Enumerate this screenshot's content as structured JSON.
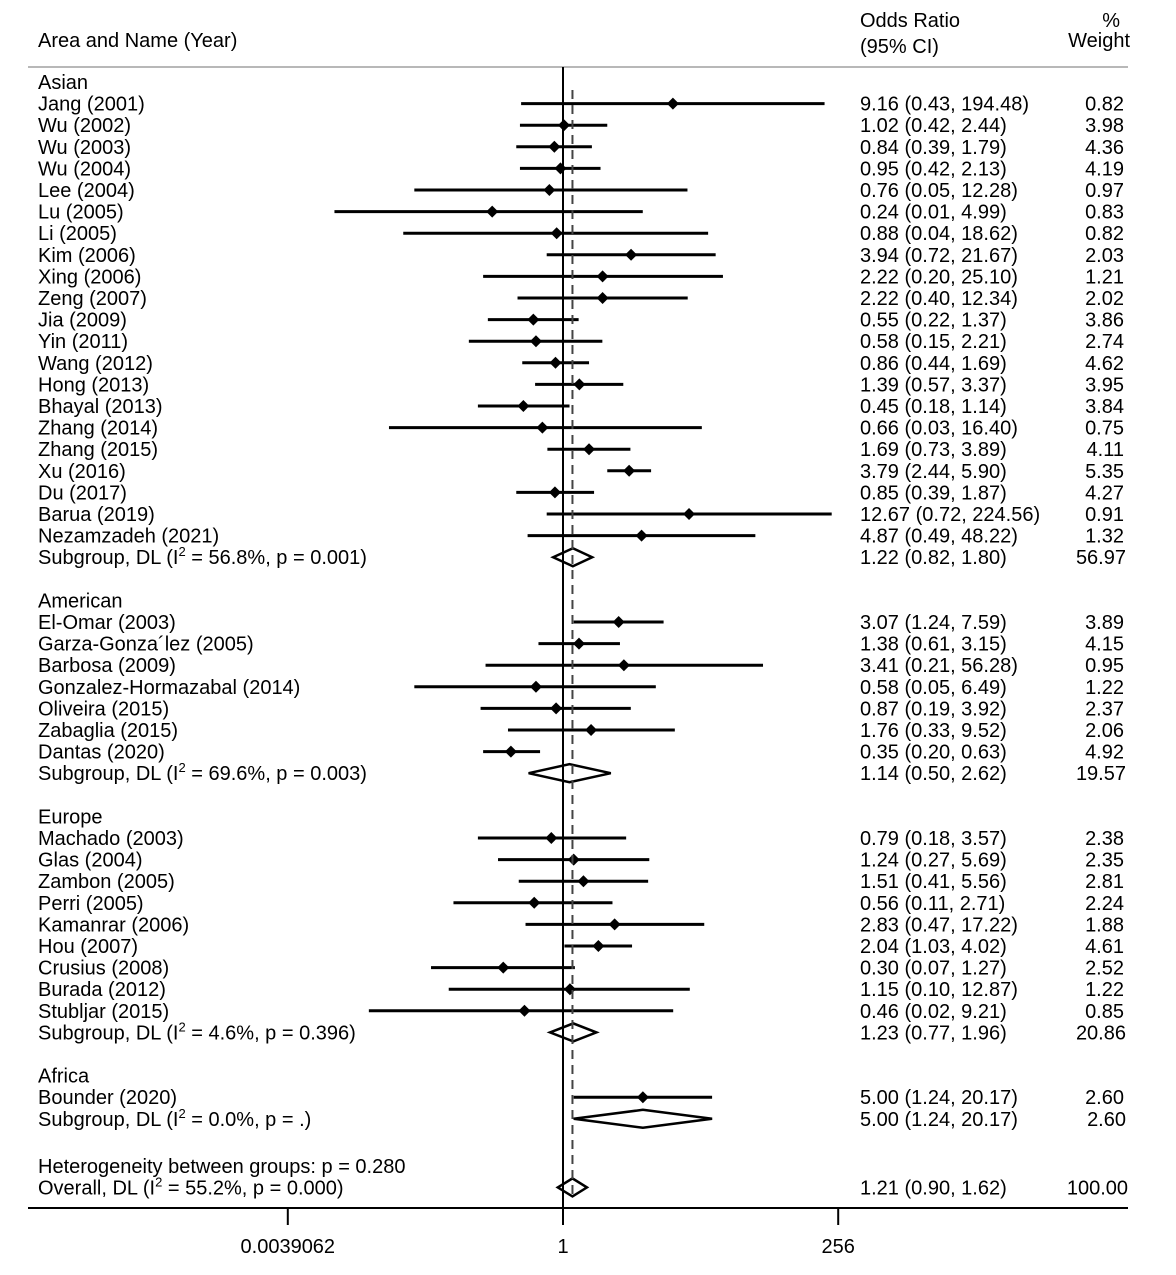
{
  "header": {
    "study_col": "Area and Name (Year)",
    "or_col_line1": "Odds Ratio",
    "or_col_line2": "(95% CI)",
    "weight_col_line1": "%",
    "weight_col_line2": "Weight"
  },
  "chart_data": {
    "type": "forest",
    "measure": "Odds Ratio",
    "x_scale": "log2",
    "xlim": [
      0.0039062,
      256
    ],
    "x_ticks": [
      0.0039062,
      1,
      256
    ],
    "x_tick_labels": [
      "0.0039062",
      "1",
      "256"
    ],
    "null_line": 1,
    "overall_line": 1.21,
    "groups": [
      {
        "name": "Asian",
        "studies": [
          {
            "label": "Jang (2001)",
            "or": 9.16,
            "lo": 0.43,
            "hi": 194.48,
            "ci_text": "9.16 (0.43, 194.48)",
            "weight": "0.82"
          },
          {
            "label": "Wu (2002)",
            "or": 1.02,
            "lo": 0.42,
            "hi": 2.44,
            "ci_text": "1.02 (0.42, 2.44)",
            "weight": "3.98"
          },
          {
            "label": "Wu (2003)",
            "or": 0.84,
            "lo": 0.39,
            "hi": 1.79,
            "ci_text": "0.84 (0.39, 1.79)",
            "weight": "4.36"
          },
          {
            "label": "Wu (2004)",
            "or": 0.95,
            "lo": 0.42,
            "hi": 2.13,
            "ci_text": "0.95 (0.42, 2.13)",
            "weight": "4.19"
          },
          {
            "label": "Lee (2004)",
            "or": 0.76,
            "lo": 0.05,
            "hi": 12.28,
            "ci_text": "0.76 (0.05, 12.28)",
            "weight": "0.97"
          },
          {
            "label": "Lu (2005)",
            "or": 0.24,
            "lo": 0.01,
            "hi": 4.99,
            "ci_text": "0.24 (0.01, 4.99)",
            "weight": "0.83"
          },
          {
            "label": "Li (2005)",
            "or": 0.88,
            "lo": 0.04,
            "hi": 18.62,
            "ci_text": "0.88 (0.04, 18.62)",
            "weight": "0.82"
          },
          {
            "label": "Kim (2006)",
            "or": 3.94,
            "lo": 0.72,
            "hi": 21.67,
            "ci_text": "3.94 (0.72, 21.67)",
            "weight": "2.03"
          },
          {
            "label": "Xing (2006)",
            "or": 2.22,
            "lo": 0.2,
            "hi": 25.1,
            "ci_text": "2.22 (0.20, 25.10)",
            "weight": "1.21"
          },
          {
            "label": "Zeng (2007)",
            "or": 2.22,
            "lo": 0.4,
            "hi": 12.34,
            "ci_text": "2.22 (0.40, 12.34)",
            "weight": "2.02"
          },
          {
            "label": "Jia (2009)",
            "or": 0.55,
            "lo": 0.22,
            "hi": 1.37,
            "ci_text": "0.55 (0.22, 1.37)",
            "weight": "3.86"
          },
          {
            "label": "Yin (2011)",
            "or": 0.58,
            "lo": 0.15,
            "hi": 2.21,
            "ci_text": "0.58 (0.15, 2.21)",
            "weight": "2.74"
          },
          {
            "label": "Wang (2012)",
            "or": 0.86,
            "lo": 0.44,
            "hi": 1.69,
            "ci_text": "0.86 (0.44, 1.69)",
            "weight": "4.62"
          },
          {
            "label": "Hong (2013)",
            "or": 1.39,
            "lo": 0.57,
            "hi": 3.37,
            "ci_text": "1.39 (0.57, 3.37)",
            "weight": "3.95"
          },
          {
            "label": "Bhayal (2013)",
            "or": 0.45,
            "lo": 0.18,
            "hi": 1.14,
            "ci_text": "0.45 (0.18, 1.14)",
            "weight": "3.84"
          },
          {
            "label": "Zhang (2014)",
            "or": 0.66,
            "lo": 0.03,
            "hi": 16.4,
            "ci_text": "0.66 (0.03, 16.40)",
            "weight": "0.75"
          },
          {
            "label": "Zhang (2015)",
            "or": 1.69,
            "lo": 0.73,
            "hi": 3.89,
            "ci_text": "1.69 (0.73, 3.89)",
            "weight": "4.11"
          },
          {
            "label": "Xu (2016)",
            "or": 3.79,
            "lo": 2.44,
            "hi": 5.9,
            "ci_text": "3.79 (2.44, 5.90)",
            "weight": "5.35"
          },
          {
            "label": "Du (2017)",
            "or": 0.85,
            "lo": 0.39,
            "hi": 1.87,
            "ci_text": "0.85 (0.39, 1.87)",
            "weight": "4.27"
          },
          {
            "label": "Barua (2019)",
            "or": 12.67,
            "lo": 0.72,
            "hi": 224.56,
            "ci_text": "12.67 (0.72, 224.56)",
            "weight": "0.91"
          },
          {
            "label": "Nezamzadeh (2021)",
            "or": 4.87,
            "lo": 0.49,
            "hi": 48.22,
            "ci_text": "4.87 (0.49, 48.22)",
            "weight": "1.32"
          }
        ],
        "subgroup": {
          "label_pre": "Subgroup, DL (I",
          "label_post": " = 56.8%, p = 0.001)",
          "or": 1.22,
          "lo": 0.82,
          "hi": 1.8,
          "ci_text": "1.22 (0.82, 1.80)",
          "weight": "56.97"
        }
      },
      {
        "name": "American",
        "studies": [
          {
            "label": "El-Omar (2003)",
            "or": 3.07,
            "lo": 1.24,
            "hi": 7.59,
            "ci_text": "3.07 (1.24, 7.59)",
            "weight": "3.89"
          },
          {
            "label": "Garza-Gonza´lez (2005)",
            "or": 1.38,
            "lo": 0.61,
            "hi": 3.15,
            "ci_text": "1.38 (0.61, 3.15)",
            "weight": "4.15"
          },
          {
            "label": "Barbosa (2009)",
            "or": 3.41,
            "lo": 0.21,
            "hi": 56.28,
            "ci_text": "3.41 (0.21, 56.28)",
            "weight": "0.95"
          },
          {
            "label": "Gonzalez-Hormazabal (2014)",
            "or": 0.58,
            "lo": 0.05,
            "hi": 6.49,
            "ci_text": "0.58 (0.05, 6.49)",
            "weight": "1.22"
          },
          {
            "label": "Oliveira (2015)",
            "or": 0.87,
            "lo": 0.19,
            "hi": 3.92,
            "ci_text": "0.87 (0.19, 3.92)",
            "weight": "2.37"
          },
          {
            "label": "Zabaglia (2015)",
            "or": 1.76,
            "lo": 0.33,
            "hi": 9.52,
            "ci_text": "1.76 (0.33, 9.52)",
            "weight": "2.06"
          },
          {
            "label": "Dantas (2020)",
            "or": 0.35,
            "lo": 0.2,
            "hi": 0.63,
            "ci_text": "0.35 (0.20, 0.63)",
            "weight": "4.92"
          }
        ],
        "subgroup": {
          "label_pre": "Subgroup, DL (I",
          "label_post": " = 69.6%, p = 0.003)",
          "or": 1.14,
          "lo": 0.5,
          "hi": 2.62,
          "ci_text": "1.14 (0.50, 2.62)",
          "weight": "19.57"
        }
      },
      {
        "name": "Europe",
        "studies": [
          {
            "label": "Machado (2003)",
            "or": 0.79,
            "lo": 0.18,
            "hi": 3.57,
            "ci_text": "0.79 (0.18, 3.57)",
            "weight": "2.38"
          },
          {
            "label": "Glas (2004)",
            "or": 1.24,
            "lo": 0.27,
            "hi": 5.69,
            "ci_text": "1.24 (0.27, 5.69)",
            "weight": "2.35"
          },
          {
            "label": "Zambon (2005)",
            "or": 1.51,
            "lo": 0.41,
            "hi": 5.56,
            "ci_text": "1.51 (0.41, 5.56)",
            "weight": "2.81"
          },
          {
            "label": "Perri (2005)",
            "or": 0.56,
            "lo": 0.11,
            "hi": 2.71,
            "ci_text": "0.56 (0.11, 2.71)",
            "weight": "2.24"
          },
          {
            "label": "Kamanrar (2006)",
            "or": 2.83,
            "lo": 0.47,
            "hi": 17.22,
            "ci_text": "2.83 (0.47, 17.22)",
            "weight": "1.88"
          },
          {
            "label": "Hou (2007)",
            "or": 2.04,
            "lo": 1.03,
            "hi": 4.02,
            "ci_text": "2.04 (1.03, 4.02)",
            "weight": "4.61"
          },
          {
            "label": "Crusius (2008)",
            "or": 0.3,
            "lo": 0.07,
            "hi": 1.27,
            "ci_text": "0.30 (0.07, 1.27)",
            "weight": "2.52"
          },
          {
            "label": "Burada (2012)",
            "or": 1.15,
            "lo": 0.1,
            "hi": 12.87,
            "ci_text": "1.15 (0.10, 12.87)",
            "weight": "1.22"
          },
          {
            "label": "Stubljar (2015)",
            "or": 0.46,
            "lo": 0.02,
            "hi": 9.21,
            "ci_text": "0.46 (0.02, 9.21)",
            "weight": "0.85"
          }
        ],
        "subgroup": {
          "label_pre": "Subgroup, DL (I",
          "label_post": " = 4.6%, p = 0.396)",
          "or": 1.23,
          "lo": 0.77,
          "hi": 1.96,
          "ci_text": "1.23 (0.77, 1.96)",
          "weight": "20.86"
        }
      },
      {
        "name": "Africa",
        "studies": [
          {
            "label": "Bounder (2020)",
            "or": 5.0,
            "lo": 1.24,
            "hi": 20.17,
            "ci_text": "5.00 (1.24, 20.17)",
            "weight": "2.60"
          }
        ],
        "subgroup": {
          "label_pre": "Subgroup, DL (I",
          "label_post": " = 0.0%, p = .)",
          "or": 5.0,
          "lo": 1.24,
          "hi": 20.17,
          "ci_text": "5.00 (1.24, 20.17)",
          "weight": "2.60"
        }
      }
    ],
    "heterogeneity_text": "Heterogeneity between groups: p = 0.280",
    "overall": {
      "label_pre": "Overall, DL (I",
      "label_post": " = 55.2%, p = 0.000)",
      "or": 1.21,
      "lo": 0.9,
      "hi": 1.62,
      "ci_text": "1.21 (0.90, 1.62)",
      "weight": "100.00"
    },
    "superscript": "2"
  }
}
